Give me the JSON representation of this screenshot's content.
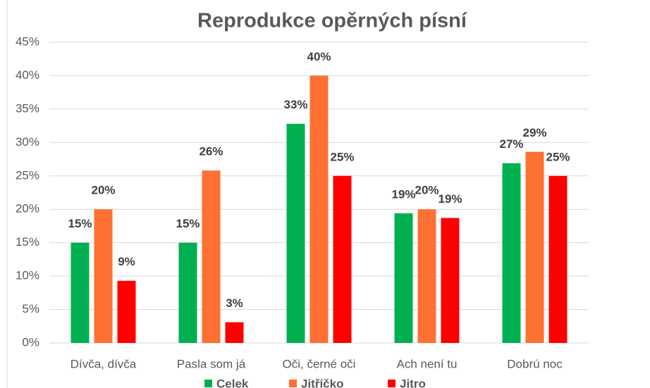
{
  "chart_data": {
    "type": "bar",
    "title": "Reprodukce opěrných písní",
    "categories": [
      "Dívča, dívča",
      "Pasla som já",
      "Oči, černé oči",
      "Ach není tu",
      "Dobrú noc"
    ],
    "series": [
      {
        "name": "Celek",
        "color": "#00b050",
        "values": [
          15,
          15,
          32.8,
          19.4,
          26.9
        ],
        "value_labels": [
          "15%",
          "15%",
          "33%",
          "19%",
          "27%"
        ]
      },
      {
        "name": "Jitříčko",
        "color": "#ff7033",
        "values": [
          20,
          25.8,
          40,
          20,
          28.6
        ],
        "value_labels": [
          "20%",
          "26%",
          "40%",
          "20%",
          "29%"
        ]
      },
      {
        "name": "Jitro",
        "color": "#ff0000",
        "values": [
          9.3,
          3.1,
          25,
          18.7,
          25
        ],
        "value_labels": [
          "9%",
          "3%",
          "25%",
          "19%",
          "25%"
        ]
      }
    ],
    "ylim": [
      0,
      45
    ],
    "yticks": [
      {
        "value": 0,
        "label": "0%"
      },
      {
        "value": 5,
        "label": "5%"
      },
      {
        "value": 10,
        "label": "10%"
      },
      {
        "value": 15,
        "label": "15%"
      },
      {
        "value": 20,
        "label": "20%"
      },
      {
        "value": 25,
        "label": "25%"
      },
      {
        "value": 30,
        "label": "30%"
      },
      {
        "value": 35,
        "label": "35%"
      },
      {
        "value": 40,
        "label": "40%"
      },
      {
        "value": 45,
        "label": "45%"
      }
    ],
    "grid": true,
    "legend": "bottom"
  }
}
